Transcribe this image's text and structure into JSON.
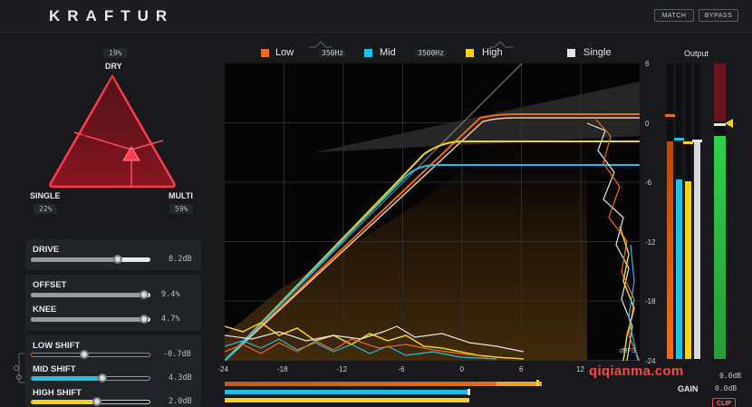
{
  "header": {
    "brand": "KRAFTUR",
    "match_label": "MATCH",
    "bypass_label": "BYPASS"
  },
  "triangle": {
    "dry_label": "DRY",
    "dry_value": "19%",
    "single_label": "SINGLE",
    "single_value": "22%",
    "multi_label": "MULTI",
    "multi_value": "59%"
  },
  "controls": {
    "drive_label": "DRIVE",
    "drive_value": "8.2dB",
    "drive_level": 0.73,
    "offset_label": "OFFSET",
    "offset_value": "9.4%",
    "offset_level": 0.95,
    "knee_label": "KNEE",
    "knee_value": "4.7%",
    "knee_level": 0.95,
    "low_shift_label": "LOW SHIFT",
    "low_shift_value": "-0.7dB",
    "low_shift_level": 0.45,
    "mid_shift_label": "MID SHIFT",
    "mid_shift_value": "4.3dB",
    "mid_shift_level": 0.6,
    "high_shift_label": "HIGH SHIFT",
    "high_shift_value": "2.0dB",
    "high_shift_level": 0.55
  },
  "legend": {
    "low": "Low",
    "xover1": "350Hz",
    "mid": "Mid",
    "xover2": "3500Hz",
    "high": "High",
    "single": "Single"
  },
  "graph": {
    "x_ticks": [
      "-24",
      "-18",
      "-12",
      "-6",
      "0",
      "6",
      "12"
    ],
    "y_ticks": [
      "6",
      "0",
      "-6",
      "-12",
      "-18",
      "-24"
    ],
    "dbfs_label": "dBFS",
    "colors": {
      "low": "#f06a1a",
      "mid": "#1ec0e8",
      "high": "#f2d21c",
      "single": "#e6e6e6"
    }
  },
  "output": {
    "title": "Output",
    "gain_label": "GAIN",
    "gain_value": "0.0dB",
    "ceiling_value": "0.0dB",
    "clip_label": "CLIP"
  },
  "watermark": "qiqianma.com"
}
